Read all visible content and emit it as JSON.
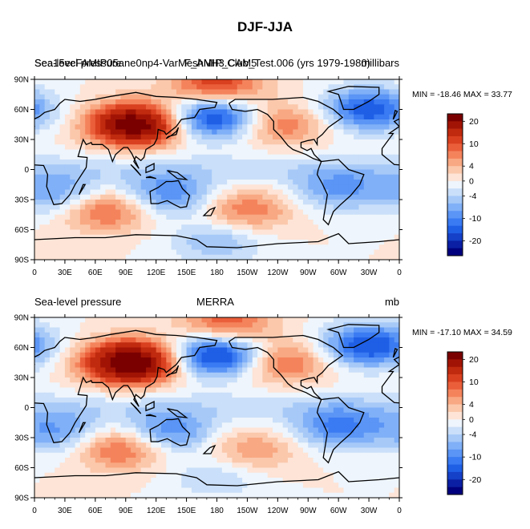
{
  "figure_title": "DJF-JJA",
  "chart_data": [
    {
      "type": "heatmap",
      "panel": "model",
      "title_left": "Sea-level pressure",
      "title_center": "F_AMIP_CAM5",
      "title_overlay": "Sea15ecFAMIP05ane0np4-VarMeshNH3.Club_Test.006 (yrs 1979-1980)",
      "units": "millibars",
      "min_max_label": "MIN = -18.46 MAX =  33.77",
      "min": -18.46,
      "max": 33.77,
      "x_ticks": [
        "0",
        "30E",
        "60E",
        "90E",
        "120E",
        "150E",
        "180",
        "150W",
        "120W",
        "90W",
        "60W",
        "30W",
        "0"
      ],
      "y_ticks": [
        "90N",
        "60N",
        "30N",
        "0",
        "30S",
        "60S",
        "90S"
      ],
      "xlim": [
        0,
        360
      ],
      "ylim": [
        -90,
        90
      ],
      "features": [
        {
          "name": "siberian-high",
          "lon": 100,
          "lat": 45,
          "value": 24
        },
        {
          "name": "aleutian-low",
          "lon": 175,
          "lat": 52,
          "value": -16
        },
        {
          "name": "icelandic-low",
          "lon": 330,
          "lat": 60,
          "value": -14
        },
        {
          "name": "north-america-high",
          "lon": 245,
          "lat": 45,
          "value": 8
        },
        {
          "name": "southern-midlat-high-indian",
          "lon": 70,
          "lat": -40,
          "value": 10
        },
        {
          "name": "southern-midlat-high-pacific",
          "lon": 210,
          "lat": -40,
          "value": 8
        },
        {
          "name": "australia-low",
          "lon": 132,
          "lat": -25,
          "value": -10
        },
        {
          "name": "south-africa-low",
          "lon": 25,
          "lat": -25,
          "value": -8
        },
        {
          "name": "south-america-low",
          "lon": 300,
          "lat": -20,
          "value": -8
        },
        {
          "name": "antarctic-coast-low",
          "lon": 180,
          "lat": -72,
          "value": -6
        },
        {
          "name": "arctic-high",
          "lon": 180,
          "lat": 85,
          "value": 12
        }
      ]
    },
    {
      "type": "heatmap",
      "panel": "obs",
      "title_left": "Sea-level pressure",
      "title_center": "MERRA",
      "units": "mb",
      "min_max_label": "MIN = -17.10 MAX =  34.59",
      "min": -17.1,
      "max": 34.59,
      "x_ticks": [
        "0",
        "30E",
        "60E",
        "90E",
        "120E",
        "150E",
        "180",
        "150W",
        "120W",
        "90W",
        "60W",
        "30W",
        "0"
      ],
      "y_ticks": [
        "90N",
        "60N",
        "30N",
        "0",
        "30S",
        "60S",
        "90S"
      ],
      "xlim": [
        0,
        360
      ],
      "ylim": [
        -90,
        90
      ],
      "features": [
        {
          "name": "siberian-high",
          "lon": 95,
          "lat": 45,
          "value": 26
        },
        {
          "name": "aleutian-low",
          "lon": 180,
          "lat": 52,
          "value": -17
        },
        {
          "name": "icelandic-low",
          "lon": 330,
          "lat": 62,
          "value": -15
        },
        {
          "name": "north-america-high",
          "lon": 245,
          "lat": 45,
          "value": 9
        },
        {
          "name": "southern-midlat-high-indian",
          "lon": 85,
          "lat": -40,
          "value": 10
        },
        {
          "name": "southern-midlat-high-pacific",
          "lon": 215,
          "lat": -42,
          "value": 6
        },
        {
          "name": "australia-low",
          "lon": 132,
          "lat": -25,
          "value": -10
        },
        {
          "name": "south-africa-low",
          "lon": 25,
          "lat": -25,
          "value": -8
        },
        {
          "name": "south-america-low",
          "lon": 300,
          "lat": -20,
          "value": -10
        },
        {
          "name": "antarctic-coast-low",
          "lon": 180,
          "lat": -70,
          "value": -4
        },
        {
          "name": "arctic-high",
          "lon": 190,
          "lat": 85,
          "value": 10
        }
      ]
    }
  ],
  "colorbar": {
    "levels": [
      -24,
      -20,
      -16,
      -12,
      -10,
      -8,
      -6,
      -4,
      -2,
      0,
      2,
      4,
      6,
      8,
      10,
      12,
      16,
      20,
      24
    ],
    "labels": [
      "20",
      "10",
      "4",
      "0",
      "-4",
      "-10",
      "-20"
    ],
    "label_values": [
      20,
      10,
      4,
      0,
      -4,
      -10,
      -20
    ],
    "colors": [
      "#00007e",
      "#0a1fa3",
      "#1540c8",
      "#1f5fe6",
      "#3a7af2",
      "#5b95f5",
      "#80b0f7",
      "#a6c9f8",
      "#cadff9",
      "#eef5fc",
      "#fde4d6",
      "#fbc8ac",
      "#f8a882",
      "#f4835c",
      "#ea5f3a",
      "#d9401f",
      "#c02a0e",
      "#a11405",
      "#7a0000"
    ]
  }
}
